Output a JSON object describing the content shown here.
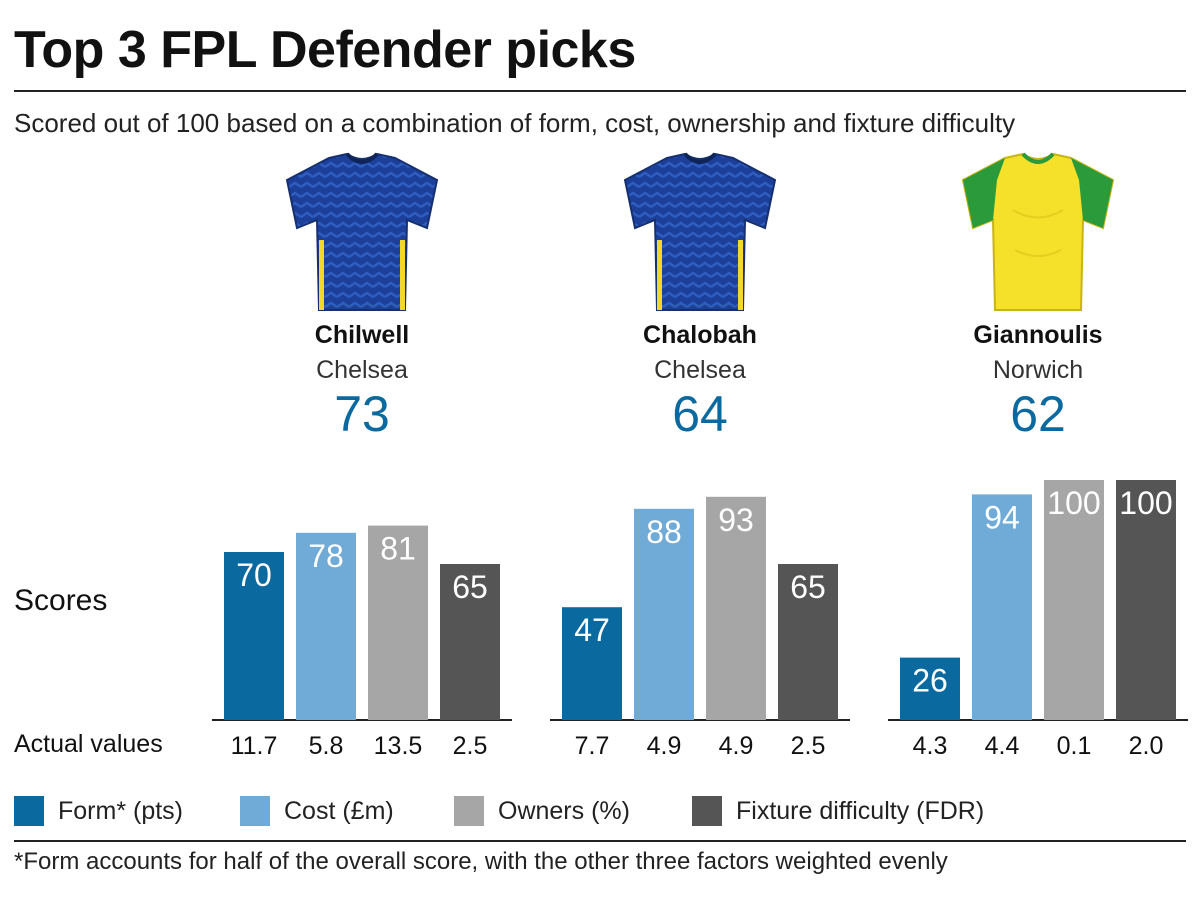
{
  "title": "Top 3 FPL Defender picks",
  "subtitle": "Scored out of 100 based on a combination of form, cost, ownership and fixture difficulty",
  "players": [
    {
      "name": "Chilwell",
      "club": "Chelsea",
      "score": "73",
      "shirt": "chelsea-shirt-icon"
    },
    {
      "name": "Chalobah",
      "club": "Chelsea",
      "score": "64",
      "shirt": "chelsea-shirt-icon"
    },
    {
      "name": "Giannoulis",
      "club": "Norwich",
      "score": "62",
      "shirt": "norwich-shirt-icon"
    }
  ],
  "labels": {
    "scores": "Scores",
    "actual": "Actual values"
  },
  "footnote": "*Form accounts for half of the overall score, with the other three factors weighted evenly",
  "colors": {
    "form": "#0a6aa0",
    "cost": "#70aad6",
    "owners": "#a6a6a6",
    "fdr": "#555555",
    "accent": "#0a6aa0",
    "chelsea_blue": "#1c3f9a",
    "norwich_yellow": "#f5e12a",
    "norwich_green": "#2a9a3a"
  },
  "chart_data": {
    "type": "bar",
    "ylim": [
      0,
      100
    ],
    "categories": [
      "Chilwell",
      "Chalobah",
      "Giannoulis"
    ],
    "series": [
      {
        "name": "Form* (pts)",
        "key": "form",
        "values": [
          70,
          47,
          26
        ],
        "actual": [
          "11.7",
          "7.7",
          "4.3"
        ]
      },
      {
        "name": "Cost (£m)",
        "key": "cost",
        "values": [
          78,
          88,
          94
        ],
        "actual": [
          "5.8",
          "4.9",
          "4.4"
        ]
      },
      {
        "name": "Owners (%)",
        "key": "owners",
        "values": [
          81,
          93,
          100
        ],
        "actual": [
          "13.5",
          "4.9",
          "0.1"
        ]
      },
      {
        "name": "Fixture difficulty (FDR)",
        "key": "fdr",
        "values": [
          65,
          65,
          100
        ],
        "actual": [
          "2.5",
          "2.5",
          "2.0"
        ]
      }
    ]
  }
}
